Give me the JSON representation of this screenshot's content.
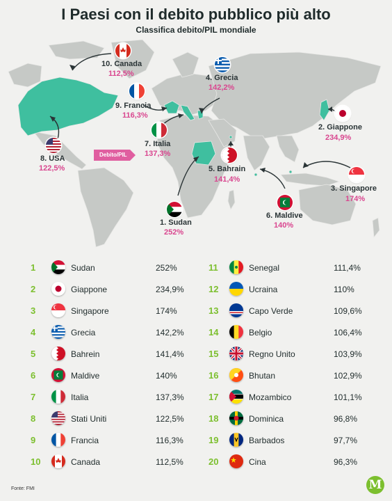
{
  "header": {
    "title": "I Paesi con il debito pubblico più alto",
    "subtitle": "Classifica debito/PIL mondiale"
  },
  "map": {
    "tag_label": "Debito/PIL",
    "callouts": [
      {
        "label": "10. Canada",
        "value": "112,5%"
      },
      {
        "label": "4. Grecia",
        "value": "142,2%"
      },
      {
        "label": "9. Francia",
        "value": "116,3%"
      },
      {
        "label": "2. Giappone",
        "value": "234,9%"
      },
      {
        "label": "7. Italia",
        "value": "137,3%"
      },
      {
        "label": "8. USA",
        "value": "122,5%"
      },
      {
        "label": "5. Bahrain",
        "value": "141,4%"
      },
      {
        "label": "3. Singapore",
        "value": "174%"
      },
      {
        "label": "6. Maldive",
        "value": "140%"
      },
      {
        "label": "1. Sudan",
        "value": "252%"
      }
    ],
    "colors": {
      "land": "#c6c9c6",
      "highlight": "#3fbf9f",
      "accent": "#d9468f",
      "rank": "#7cbf2e"
    }
  },
  "ranking": [
    {
      "rank": "1",
      "country": "Sudan",
      "value": "252%",
      "flag": "sudan-flag"
    },
    {
      "rank": "2",
      "country": "Giappone",
      "value": "234,9%",
      "flag": "japan-flag"
    },
    {
      "rank": "3",
      "country": "Singapore",
      "value": "174%",
      "flag": "singapore-flag"
    },
    {
      "rank": "4",
      "country": "Grecia",
      "value": "142,2%",
      "flag": "greece-flag"
    },
    {
      "rank": "5",
      "country": "Bahrein",
      "value": "141,4%",
      "flag": "bahrain-flag"
    },
    {
      "rank": "6",
      "country": "Maldive",
      "value": "140%",
      "flag": "maldives-flag"
    },
    {
      "rank": "7",
      "country": "Italia",
      "value": "137,3%",
      "flag": "italy-flag"
    },
    {
      "rank": "8",
      "country": "Stati Uniti",
      "value": "122,5%",
      "flag": "usa-flag"
    },
    {
      "rank": "9",
      "country": "Francia",
      "value": "116,3%",
      "flag": "france-flag"
    },
    {
      "rank": "10",
      "country": "Canada",
      "value": "112,5%",
      "flag": "canada-flag"
    },
    {
      "rank": "11",
      "country": "Senegal",
      "value": "111,4%",
      "flag": "senegal-flag"
    },
    {
      "rank": "12",
      "country": "Ucraina",
      "value": "110%",
      "flag": "ukraine-flag"
    },
    {
      "rank": "13",
      "country": "Capo Verde",
      "value": "109,6%",
      "flag": "cape-verde-flag"
    },
    {
      "rank": "14",
      "country": "Belgio",
      "value": "106,4%",
      "flag": "belgium-flag"
    },
    {
      "rank": "15",
      "country": "Regno Unito",
      "value": "103,9%",
      "flag": "uk-flag"
    },
    {
      "rank": "16",
      "country": "Bhutan",
      "value": "102,9%",
      "flag": "bhutan-flag"
    },
    {
      "rank": "17",
      "country": "Mozambico",
      "value": "101,1%",
      "flag": "mozambique-flag"
    },
    {
      "rank": "18",
      "country": "Dominica",
      "value": "96,8%",
      "flag": "dominica-flag"
    },
    {
      "rank": "19",
      "country": "Barbados",
      "value": "97,7%",
      "flag": "barbados-flag"
    },
    {
      "rank": "20",
      "country": "Cina",
      "value": "96,3%",
      "flag": "china-flag"
    }
  ],
  "footer": {
    "source": "Fonte: FMI",
    "logo": "M"
  }
}
